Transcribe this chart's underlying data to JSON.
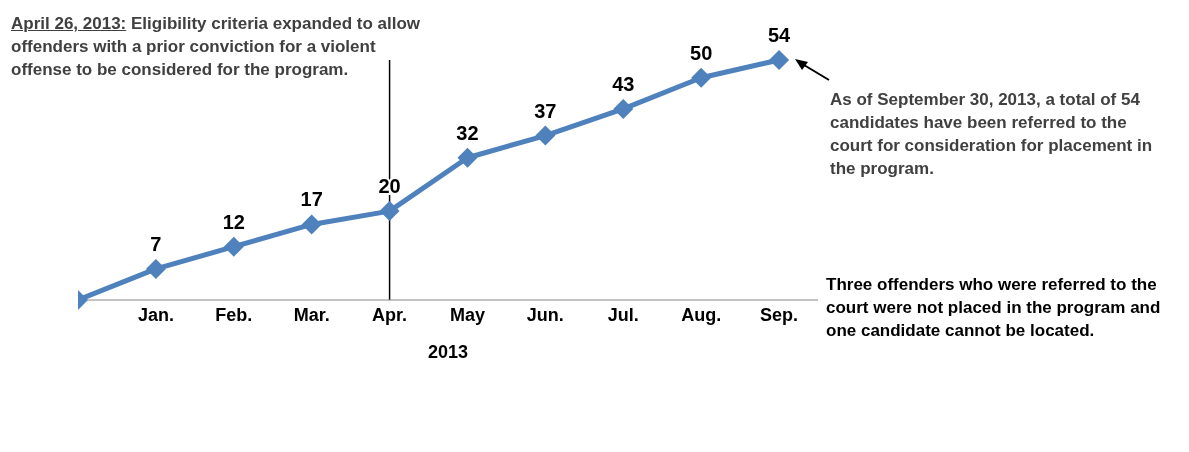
{
  "chart_data": {
    "type": "line",
    "xlabel": "2013",
    "categories": [
      null,
      "Jan.",
      "Feb.",
      "Mar.",
      "Apr.",
      "May",
      "Jun.",
      "Jul.",
      "Aug.",
      "Sep."
    ],
    "series": [
      {
        "color": "#4f81bd",
        "values": [
          0,
          7,
          12,
          17,
          20,
          32,
          37,
          43,
          50,
          54
        ],
        "value_labels": [
          null,
          "7",
          "12",
          "17",
          "20",
          "32",
          "37",
          "43",
          "50",
          "54"
        ]
      }
    ],
    "marker": "diamond",
    "ref_lines": [
      {
        "axis": "x",
        "value": "Apr.",
        "label": "April 26, 2013: Eligibility criteria expanded to allow offenders with a prior conviction for a violent offense to be considered for the program.",
        "color": "#000000"
      }
    ],
    "annotations": [
      "As of September 30, 2013, a total of 54 candidates have been referred to the court for consideration for placement in the program.",
      "Three offenders who were referred to the court were not placed in the program and one candidate cannot be located."
    ]
  }
}
